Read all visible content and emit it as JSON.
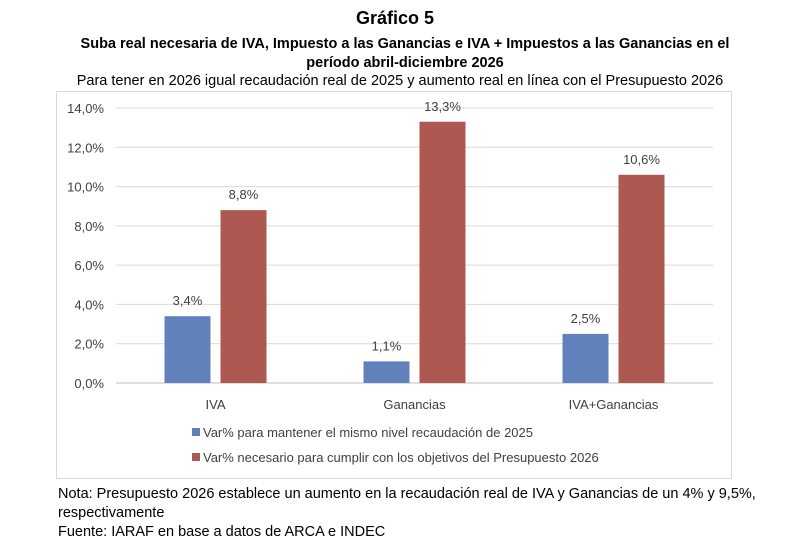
{
  "title": "Gráfico 5",
  "subtitle": "Suba real necesaria de IVA, Impuesto a las Ganancias e IVA + Impuestos a las Ganancias en el período abril-diciembre 2026",
  "caption": "Para tener en 2026 igual recaudación real de 2025 y aumento real en línea con el Presupuesto 2026",
  "chart_data": {
    "type": "bar",
    "categories": [
      "IVA",
      "Ganancias",
      "IVA+Ganancias"
    ],
    "series": [
      {
        "name": "Var% para mantener el mismo nivel recaudación de 2025",
        "values": [
          3.4,
          1.1,
          2.5
        ],
        "labels": [
          "3,4%",
          "1,1%",
          "2,5%"
        ],
        "color": "#6081bb"
      },
      {
        "name": "Var% necesario para cumplir con los objetivos del Presupuesto 2026",
        "values": [
          8.8,
          13.3,
          10.6
        ],
        "labels": [
          "8,8%",
          "13,3%",
          "10,6%"
        ],
        "color": "#ad5850"
      }
    ],
    "ylim": [
      0,
      14
    ],
    "yticks": [
      "0,0%",
      "2,0%",
      "4,0%",
      "6,0%",
      "8,0%",
      "10,0%",
      "12,0%",
      "14,0%"
    ],
    "grid": true,
    "legend": "bottom"
  },
  "notes": {
    "line1": "Nota: Presupuesto 2026 establece un aumento en la recaudación real de IVA y Ganancias de un 4% y 9,5%,",
    "line2": "respectivamente",
    "source": "Fuente: IARAF en base a datos de ARCA e INDEC"
  }
}
